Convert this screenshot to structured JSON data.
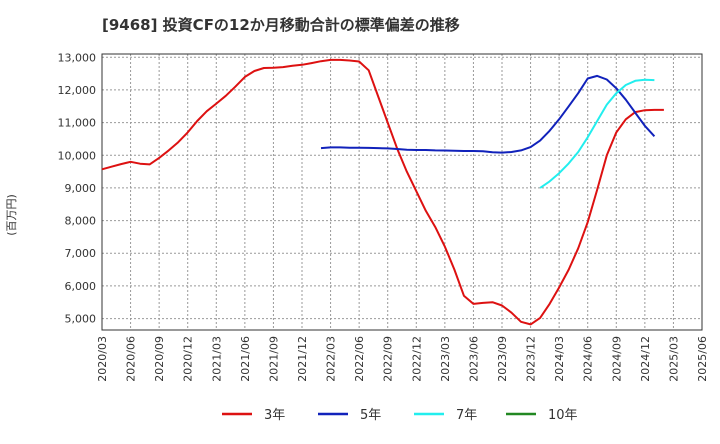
{
  "chart_data": {
    "type": "line",
    "title": "[9468]  投資CFの12か月移動合計の標準偏差の推移",
    "ylabel": "(百万円)",
    "xlabel": "",
    "ylim": [
      4650,
      13100
    ],
    "yticks": [
      5000,
      6000,
      7000,
      8000,
      9000,
      10000,
      11000,
      12000,
      13000
    ],
    "ytick_labels": [
      "5,000",
      "6,000",
      "7,000",
      "8,000",
      "9,000",
      "10,000",
      "11,000",
      "12,000",
      "13,000"
    ],
    "xticks": [
      "2020/03",
      "2020/06",
      "2020/09",
      "2020/12",
      "2021/03",
      "2021/06",
      "2021/09",
      "2021/12",
      "2022/03",
      "2022/06",
      "2022/09",
      "2022/12",
      "2023/03",
      "2023/06",
      "2023/09",
      "2023/12",
      "2024/03",
      "2024/06",
      "2024/09",
      "2024/12",
      "2025/03",
      "2025/06"
    ],
    "grid": true,
    "legend_position": "bottom",
    "series": [
      {
        "name": "3年",
        "color": "#dd1111",
        "values": [
          9570,
          9650,
          9730,
          9800,
          9740,
          9720,
          9920,
          10150,
          10400,
          10700,
          11050,
          11350,
          11580,
          11820,
          12100,
          12400,
          12580,
          12670,
          12680,
          12700,
          12740,
          12770,
          12820,
          12880,
          12920,
          12920,
          12900,
          12870,
          12600,
          11800,
          11000,
          10200,
          9500,
          8900,
          8300,
          7800,
          7200,
          6500,
          5700,
          5450,
          5480,
          5500,
          5400,
          5180,
          4900,
          4820,
          5020,
          5450,
          5950,
          6500,
          7150,
          7950,
          8950,
          10000,
          10700,
          11100,
          11320,
          11380,
          11390,
          11390
        ]
      },
      {
        "name": "5年",
        "color": "#1122bb",
        "values": [
          null,
          null,
          null,
          null,
          null,
          null,
          null,
          null,
          null,
          null,
          null,
          null,
          null,
          null,
          null,
          null,
          null,
          null,
          null,
          null,
          null,
          null,
          null,
          10220,
          10240,
          10240,
          10230,
          10230,
          10225,
          10220,
          10210,
          10190,
          10170,
          10160,
          10160,
          10150,
          10145,
          10140,
          10130,
          10130,
          10120,
          10090,
          10080,
          10100,
          10150,
          10250,
          10450,
          10750,
          11100,
          11500,
          11900,
          12350,
          12430,
          12320,
          12050,
          11700,
          11300,
          10900,
          10580
        ]
      },
      {
        "name": "7年",
        "color": "#22eeee",
        "values": [
          null,
          null,
          null,
          null,
          null,
          null,
          null,
          null,
          null,
          null,
          null,
          null,
          null,
          null,
          null,
          null,
          null,
          null,
          null,
          null,
          null,
          null,
          null,
          null,
          null,
          null,
          null,
          null,
          null,
          null,
          null,
          null,
          null,
          null,
          null,
          null,
          null,
          null,
          null,
          null,
          null,
          null,
          null,
          null,
          null,
          null,
          9000,
          9200,
          9450,
          9750,
          10100,
          10550,
          11050,
          11550,
          11900,
          12150,
          12280,
          12310,
          12300
        ]
      },
      {
        "name": "10年",
        "color": "#228822",
        "values": []
      }
    ]
  }
}
